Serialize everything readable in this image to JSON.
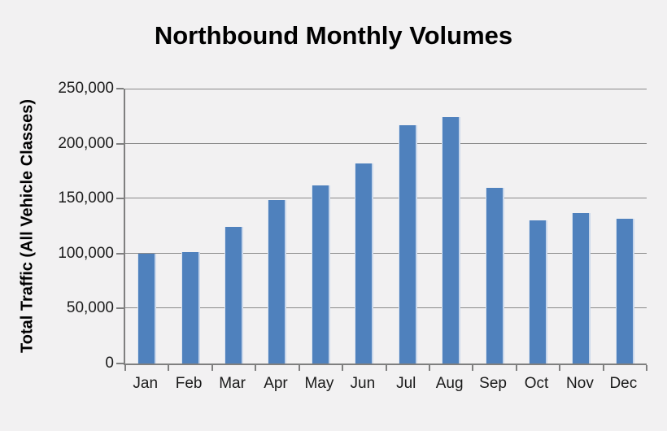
{
  "chart_data": {
    "type": "bar",
    "title": "Northbound Monthly Volumes",
    "xlabel": "",
    "ylabel": "Total Traffic (All Vehicle Classes)",
    "categories": [
      "Jan",
      "Feb",
      "Mar",
      "Apr",
      "May",
      "Jun",
      "Jul",
      "Aug",
      "Sep",
      "Oct",
      "Nov",
      "Dec"
    ],
    "values": [
      100000,
      101500,
      124000,
      148500,
      162000,
      182000,
      217000,
      224000,
      160000,
      130000,
      137000,
      131500
    ],
    "ylim": [
      0,
      250000
    ],
    "y_tick_values": [
      250000,
      200000,
      150000,
      100000,
      50000,
      0
    ],
    "y_tick_labels": [
      "250,000",
      "200,000",
      "150,000",
      "100,000",
      "50,000",
      "0"
    ],
    "grid": true,
    "legend": false,
    "colors": {
      "bar": "#4F81BD",
      "bar_edge_light": "#C9D7EB",
      "background": "#F2F1F2",
      "gridline": "#8A8A8A",
      "axis": "#7F7F7F",
      "text": "#1A1A1A",
      "title_text": "#000000"
    }
  }
}
